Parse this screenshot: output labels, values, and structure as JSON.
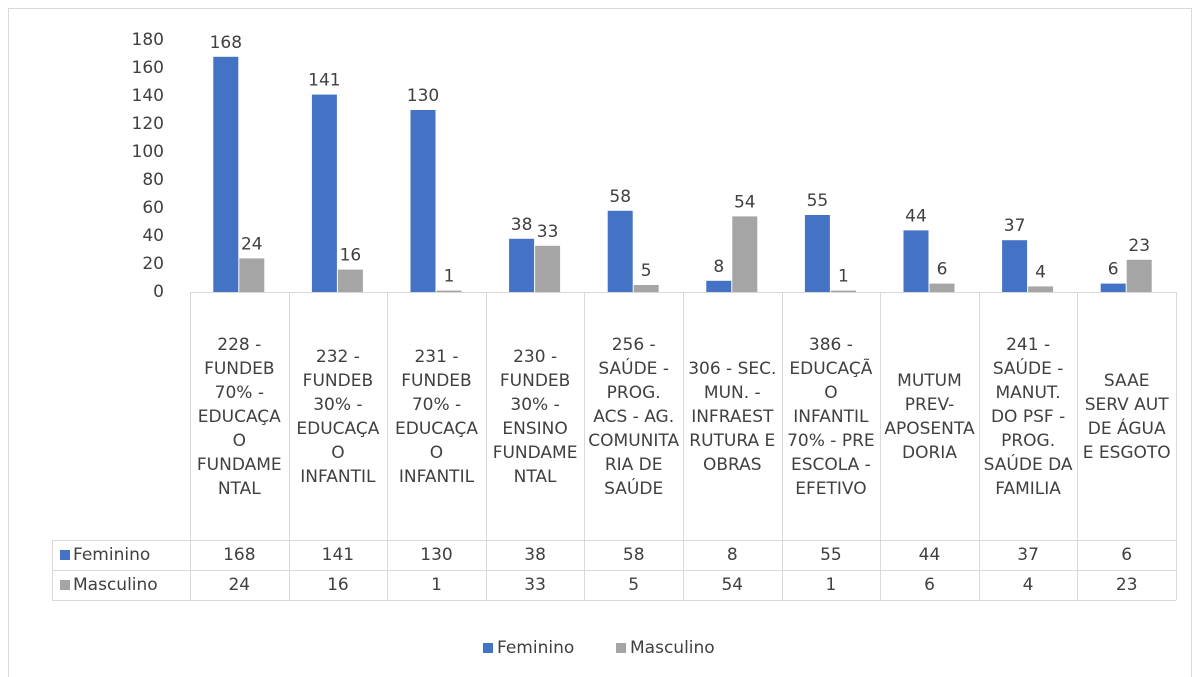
{
  "chart_data": {
    "type": "bar",
    "categories": [
      "228 - FUNDEB 70% - EDUCAÇAO FUNDAMENTAL",
      "232 - FUNDEB 30% - EDUCAÇAO INFANTIL",
      "231 - FUNDEB 70% - EDUCAÇAO INFANTIL",
      "230 - FUNDEB 30% - ENSINO FUNDAMENTAL",
      "256 - SAÚDE - PROG. ACS - AG. COMUNITARIA DE SAÚDE",
      "306 - SEC. MUN. - INFRAESTRUTURA E OBRAS",
      "386 - EDUCAÇÃO INFANTIL 70% - PRE ESCOLA - EFETIVO",
      "MUTUM PREV- APOSENTADORIA",
      "241 - SAÚDE - MANUT. DO PSF - PROG. SAÚDE DA FAMILIA",
      "SAAE SERV AUT DE ÁGUA E ESGOTO"
    ],
    "series": [
      {
        "name": "Feminino",
        "color": "#4472c4",
        "values": [
          168,
          141,
          130,
          38,
          58,
          8,
          55,
          44,
          37,
          6
        ]
      },
      {
        "name": "Masculino",
        "color": "#a5a5a5",
        "values": [
          24,
          16,
          1,
          33,
          5,
          54,
          1,
          6,
          4,
          23
        ]
      }
    ],
    "ylim": [
      0,
      180
    ],
    "yticks": [
      0,
      20,
      40,
      60,
      80,
      100,
      120,
      140,
      160,
      180
    ],
    "grid": false,
    "legend": "bottom"
  }
}
